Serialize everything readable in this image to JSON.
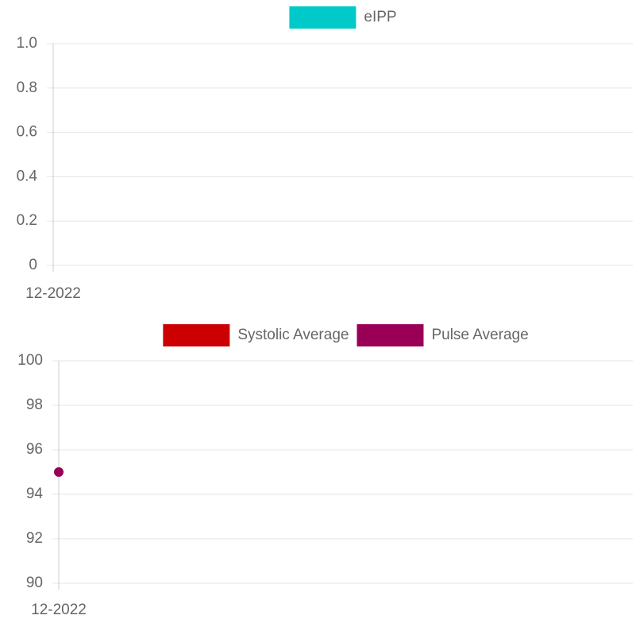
{
  "chart_data": [
    {
      "type": "line",
      "categories": [
        "12-2022"
      ],
      "series": [
        {
          "name": "eIPP",
          "color": "#00c9c9",
          "values": [
            null
          ]
        }
      ],
      "ylim": [
        0,
        1
      ],
      "yticks": [
        0,
        0.2,
        0.4,
        0.6,
        0.8,
        {
          "value": 1,
          "label": "1.0"
        }
      ],
      "grid": true
    },
    {
      "type": "line",
      "categories": [
        "12-2022"
      ],
      "series": [
        {
          "name": "Systolic Average",
          "color": "#cc0000",
          "values": [
            null
          ]
        },
        {
          "name": "Pulse Average",
          "color": "#990055",
          "values": [
            95
          ]
        }
      ],
      "ylim": [
        90,
        100
      ],
      "yticks": [
        90,
        92,
        94,
        96,
        98,
        100
      ],
      "grid": true
    }
  ]
}
